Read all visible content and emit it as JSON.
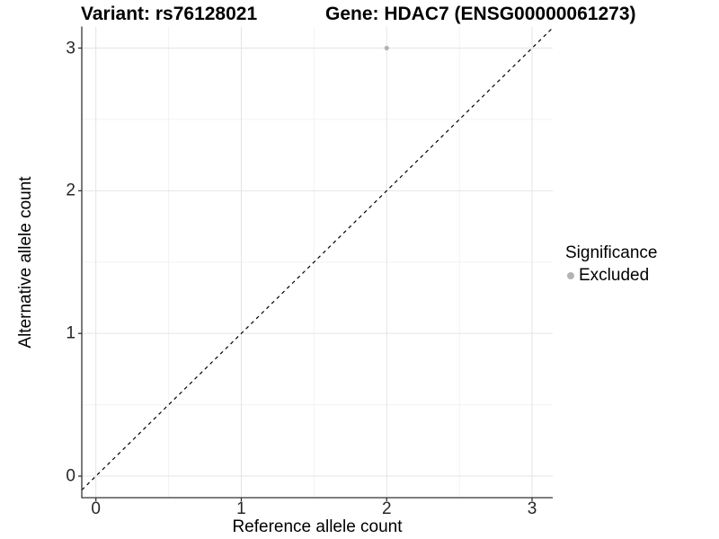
{
  "chart_data": {
    "type": "scatter",
    "title_left": "Variant: rs76128021",
    "title_right": "Gene: HDAC7 (ENSG00000061273)",
    "xlabel": "Reference allele count",
    "ylabel": "Alternative allele count",
    "x_ticks": [
      "0",
      "1",
      "2",
      "3"
    ],
    "y_ticks": [
      "0",
      "1",
      "2",
      "3"
    ],
    "x_tick_values": [
      0,
      1,
      2,
      3
    ],
    "y_tick_values": [
      0,
      1,
      2,
      3
    ],
    "minor_tick_values": [
      0.5,
      1.5,
      2.5
    ],
    "xlim": [
      -0.097,
      3.142
    ],
    "ylim": [
      -0.151,
      3.148
    ],
    "grid": true,
    "legend_position": "right",
    "identity_line": {
      "slope": 1,
      "intercept": 0,
      "style": "dashed",
      "color": "#000000"
    },
    "points": [
      {
        "x": 2,
        "y": 3,
        "series": "Excluded",
        "color": "#b3b3b3"
      }
    ],
    "legend": {
      "title": "Significance",
      "items": [
        {
          "label": "Excluded",
          "color": "#b3b3b3",
          "marker": "circle"
        }
      ]
    },
    "colors": {
      "grid_major": "#e4e4e4",
      "grid_minor": "#f2f2f2",
      "axis": "#333333",
      "point": "#b3b3b3",
      "background": "#ffffff"
    }
  }
}
